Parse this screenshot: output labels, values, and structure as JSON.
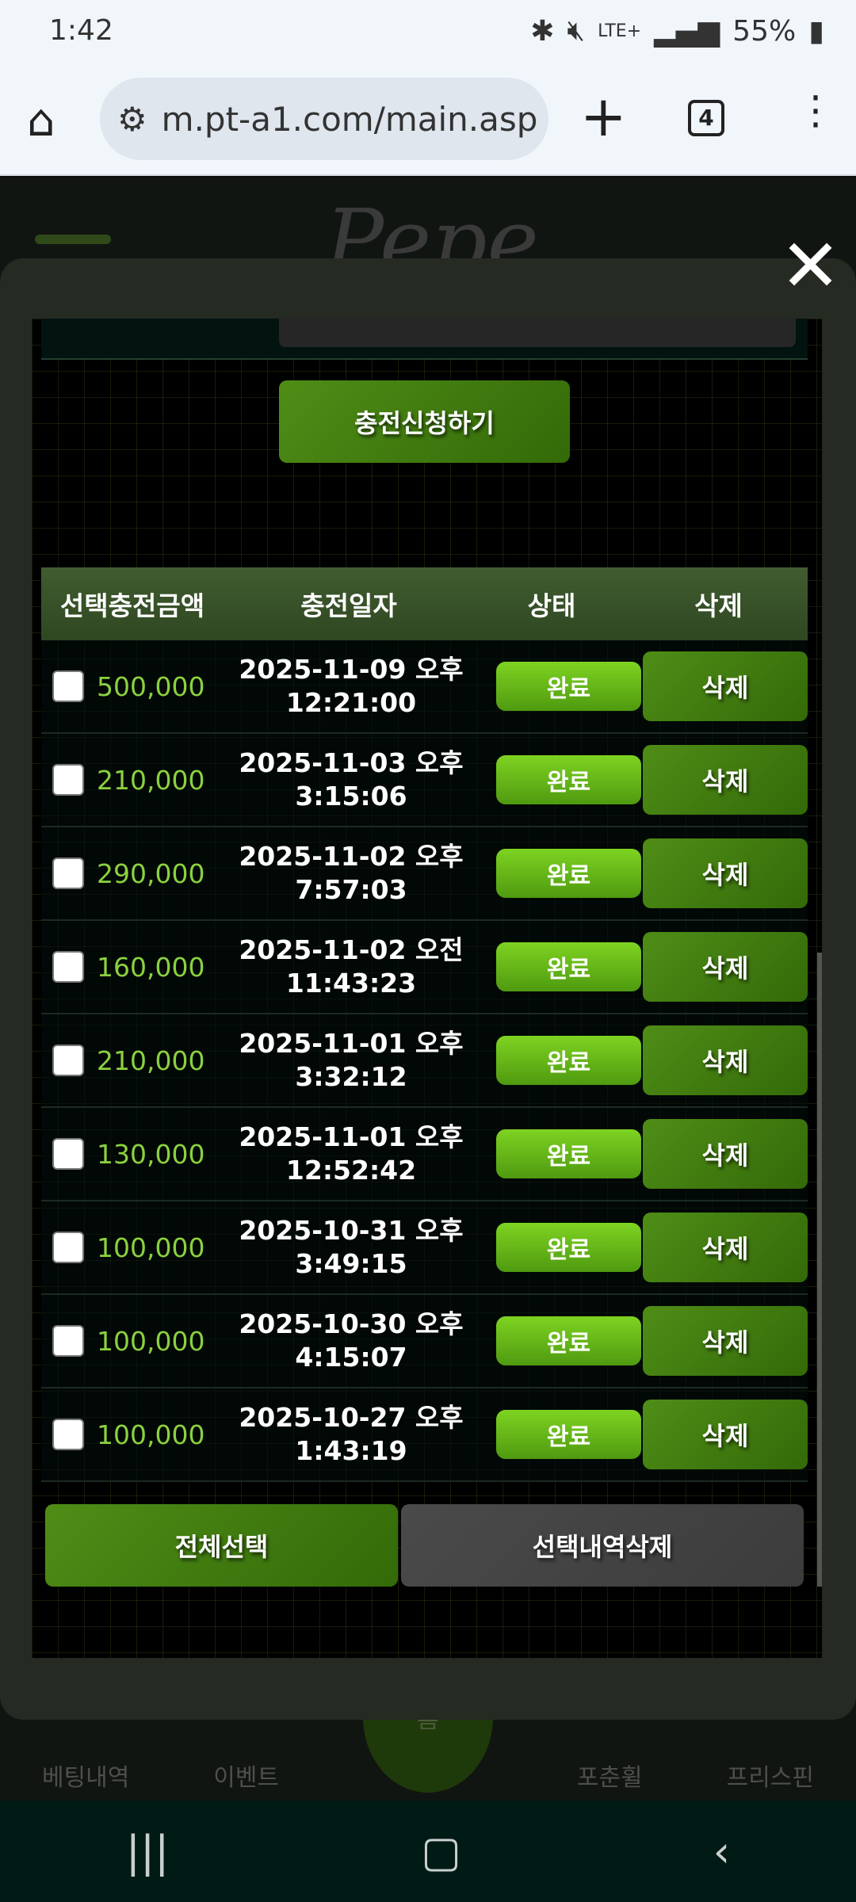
{
  "status": {
    "time": "1:42",
    "icons": [
      "bluetooth-icon",
      "mute-icon",
      "lte-icon",
      "signal-icon"
    ],
    "network": "LTE+",
    "battery": "55%"
  },
  "browser": {
    "url": "m.pt-a1.com/main.asp",
    "tab_count": "4"
  },
  "background": {
    "logo": "Pepe",
    "nav": [
      "베팅내역",
      "이벤트",
      "홈",
      "포춘휠",
      "프리스핀"
    ]
  },
  "modal": {
    "apply_label": "충전신청하기",
    "headers": [
      "선택충전금액",
      "충전일자",
      "상태",
      "삭제"
    ],
    "rows": [
      {
        "amount": "500,000",
        "date": "2025-11-09 오후",
        "time": "12:21:00",
        "status": "완료",
        "delete": "삭제"
      },
      {
        "amount": "210,000",
        "date": "2025-11-03 오후",
        "time": "3:15:06",
        "status": "완료",
        "delete": "삭제"
      },
      {
        "amount": "290,000",
        "date": "2025-11-02 오후",
        "time": "7:57:03",
        "status": "완료",
        "delete": "삭제"
      },
      {
        "amount": "160,000",
        "date": "2025-11-02 오전",
        "time": "11:43:23",
        "status": "완료",
        "delete": "삭제"
      },
      {
        "amount": "210,000",
        "date": "2025-11-01 오후",
        "time": "3:32:12",
        "status": "완료",
        "delete": "삭제"
      },
      {
        "amount": "130,000",
        "date": "2025-11-01 오후",
        "time": "12:52:42",
        "status": "완료",
        "delete": "삭제"
      },
      {
        "amount": "100,000",
        "date": "2025-10-31 오후",
        "time": "3:49:15",
        "status": "완료",
        "delete": "삭제"
      },
      {
        "amount": "100,000",
        "date": "2025-10-30 오후",
        "time": "4:15:07",
        "status": "완료",
        "delete": "삭제"
      },
      {
        "amount": "100,000",
        "date": "2025-10-27 오후",
        "time": "1:43:19",
        "status": "완료",
        "delete": "삭제"
      }
    ],
    "select_all_label": "전체선택",
    "delete_selected_label": "선택내역삭제"
  },
  "colors": {
    "accent": "#4f8d17",
    "amount": "#8bd13f",
    "status": "#7ed321"
  }
}
